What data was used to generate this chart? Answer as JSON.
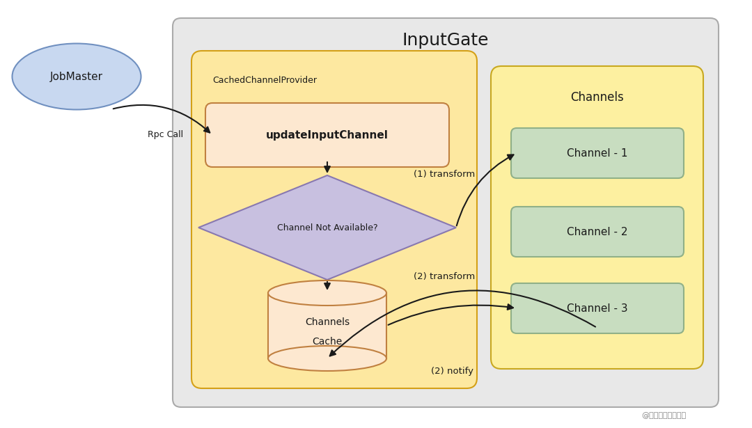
{
  "white_bg": "#ffffff",
  "title": "InputGate",
  "title_fontsize": 18,
  "jobmaster_label": "JobMaster",
  "rpc_call_label": "Rpc Call",
  "cached_provider_label": "CachedChannelProvider",
  "update_channel_label": "updateInputChannel",
  "diamond_label": "Channel Not Available?",
  "cache_label1": "Channels",
  "cache_label2": "Cache",
  "channels_title": "Channels",
  "channel_labels": [
    "Channel - 1",
    "Channel - 2",
    "Channel - 3"
  ],
  "transform1_label": "(1) transform",
  "transform2_label": "(2) transform",
  "notify_label": "(2) notify",
  "watermark": "@稀土掘金技术社区",
  "colors": {
    "outer_box": "#e8e8e8",
    "outer_box_border": "#aaaaaa",
    "cached_box": "#fde8a0",
    "cached_box_border": "#d4a017",
    "update_box": "#fde8d0",
    "update_box_border": "#c08040",
    "diamond": "#c8c0e0",
    "diamond_border": "#8878b0",
    "cache_cylinder": "#fde8d0",
    "cache_cylinder_border": "#c08040",
    "channels_box": "#fdf0a0",
    "channels_box_border": "#c8a820",
    "channel_box": "#c8ddc0",
    "channel_box_border": "#90b088",
    "jobmaster_fill": "#c8d8f0",
    "jobmaster_border": "#7090c0",
    "arrow_color": "#1a1a1a",
    "text_color": "#1a1a1a"
  }
}
